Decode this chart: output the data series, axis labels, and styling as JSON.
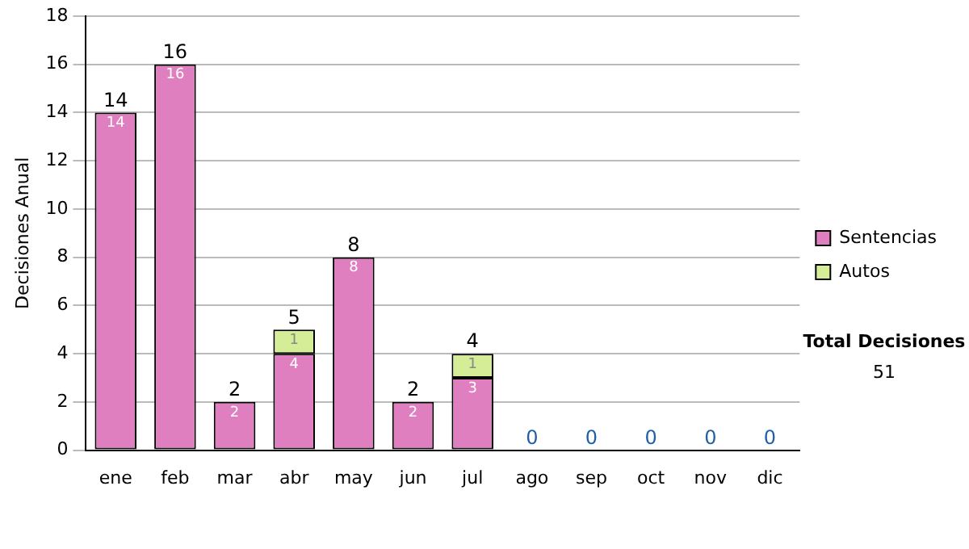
{
  "chart_data": {
    "type": "bar",
    "stacked": true,
    "ylabel": "Decisiones Anual",
    "categories": [
      "ene",
      "feb",
      "mar",
      "abr",
      "may",
      "jun",
      "jul",
      "ago",
      "sep",
      "oct",
      "nov",
      "dic"
    ],
    "series": [
      {
        "name": "Sentencias",
        "color": "#df7fc0",
        "values": [
          14,
          16,
          2,
          4,
          8,
          2,
          3,
          0,
          0,
          0,
          0,
          0
        ],
        "value_labels": [
          "14",
          "16",
          "2",
          "4",
          "8",
          "2",
          "3",
          null,
          null,
          null,
          null,
          null
        ]
      },
      {
        "name": "Autos",
        "color": "#d5ed97",
        "values": [
          0,
          0,
          0,
          1,
          0,
          0,
          1,
          0,
          0,
          0,
          0,
          0
        ],
        "value_labels": [
          null,
          null,
          null,
          "1",
          null,
          null,
          "1",
          null,
          null,
          null,
          null,
          null
        ]
      }
    ],
    "totals": [
      "14",
      "16",
      "2",
      "5",
      "8",
      "2",
      "4",
      "0",
      "0",
      "0",
      "0",
      "0"
    ],
    "ylim": [
      0,
      18
    ],
    "yticks": [
      0,
      2,
      4,
      6,
      8,
      10,
      12,
      14,
      16,
      18
    ],
    "grid": "y",
    "legend": "right",
    "annotations": [
      "Total Decisiones",
      "51"
    ]
  }
}
